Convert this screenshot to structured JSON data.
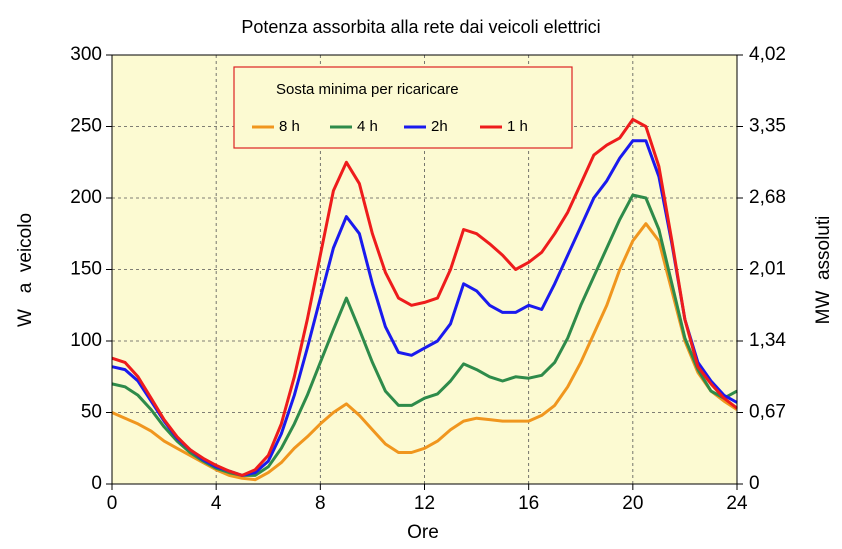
{
  "chart_data": {
    "type": "line",
    "title": "Potenza assorbita alla rete dai veicoli elettrici",
    "xlabel": "Ore",
    "ylabel": "W   a  veicolo",
    "y2label": "MW  assoluti",
    "legend_title": "Sosta minima per ricaricare",
    "x": [
      0,
      0.5,
      1,
      1.5,
      2,
      2.5,
      3,
      3.5,
      4,
      4.5,
      5,
      5.5,
      6,
      6.5,
      7,
      7.5,
      8,
      8.5,
      9,
      9.5,
      10,
      10.5,
      11,
      11.5,
      12,
      12.5,
      13,
      13.5,
      14,
      14.5,
      15,
      15.5,
      16,
      16.5,
      17,
      17.5,
      18,
      18.5,
      19,
      19.5,
      20,
      20.5,
      21,
      21.5,
      22,
      22.5,
      23,
      23.5,
      24
    ],
    "series": [
      {
        "name": "8 h",
        "color": "#f0961e",
        "values": [
          50,
          46,
          42,
          37,
          30,
          25,
          20,
          15,
          10,
          6,
          4,
          3,
          8,
          15,
          25,
          33,
          42,
          50,
          56,
          48,
          38,
          28,
          22,
          22,
          25,
          30,
          38,
          44,
          46,
          45,
          44,
          44,
          44,
          48,
          55,
          68,
          85,
          105,
          125,
          150,
          170,
          182,
          170,
          135,
          100,
          78,
          65,
          58,
          52
        ]
      },
      {
        "name": "4 h",
        "color": "#2e8b4a",
        "values": [
          70,
          68,
          62,
          52,
          40,
          30,
          22,
          16,
          11,
          8,
          6,
          6,
          12,
          25,
          42,
          62,
          85,
          108,
          130,
          108,
          85,
          65,
          55,
          55,
          60,
          63,
          72,
          84,
          80,
          75,
          72,
          75,
          74,
          76,
          85,
          102,
          125,
          145,
          165,
          185,
          202,
          200,
          178,
          140,
          102,
          80,
          65,
          60,
          65
        ]
      },
      {
        "name": "2h",
        "color": "#1a1aee",
        "values": [
          82,
          80,
          72,
          58,
          44,
          32,
          24,
          17,
          12,
          9,
          6,
          8,
          16,
          35,
          62,
          95,
          130,
          165,
          187,
          175,
          140,
          110,
          92,
          90,
          95,
          100,
          112,
          140,
          135,
          125,
          120,
          120,
          125,
          122,
          140,
          160,
          180,
          200,
          212,
          228,
          240,
          240,
          215,
          168,
          115,
          85,
          72,
          62,
          57
        ]
      },
      {
        "name": "1 h",
        "color": "#ee1c1c",
        "values": [
          88,
          85,
          75,
          60,
          45,
          33,
          24,
          18,
          13,
          9,
          6,
          10,
          20,
          42,
          75,
          115,
          160,
          205,
          225,
          210,
          175,
          148,
          130,
          125,
          127,
          130,
          150,
          178,
          175,
          168,
          160,
          150,
          155,
          162,
          175,
          190,
          210,
          230,
          237,
          242,
          255,
          250,
          222,
          170,
          115,
          82,
          70,
          60,
          53
        ]
      }
    ],
    "xlim": [
      0,
      24
    ],
    "xticks": [
      0,
      4,
      8,
      12,
      16,
      20,
      24
    ],
    "ylim": [
      0,
      300
    ],
    "yticks": [
      0,
      50,
      100,
      150,
      200,
      250,
      300
    ],
    "y2lim": [
      0,
      4.02
    ],
    "y2ticks": [
      {
        "value": 0,
        "label": "0"
      },
      {
        "value": 0.67,
        "label": "0,67"
      },
      {
        "value": 1.34,
        "label": "1,34"
      },
      {
        "value": 2.01,
        "label": "2,01"
      },
      {
        "value": 2.68,
        "label": "2,68"
      },
      {
        "value": 3.35,
        "label": "3,35"
      },
      {
        "value": 4.02,
        "label": "4,02"
      }
    ],
    "grid": true,
    "background": "#fcfad2"
  }
}
